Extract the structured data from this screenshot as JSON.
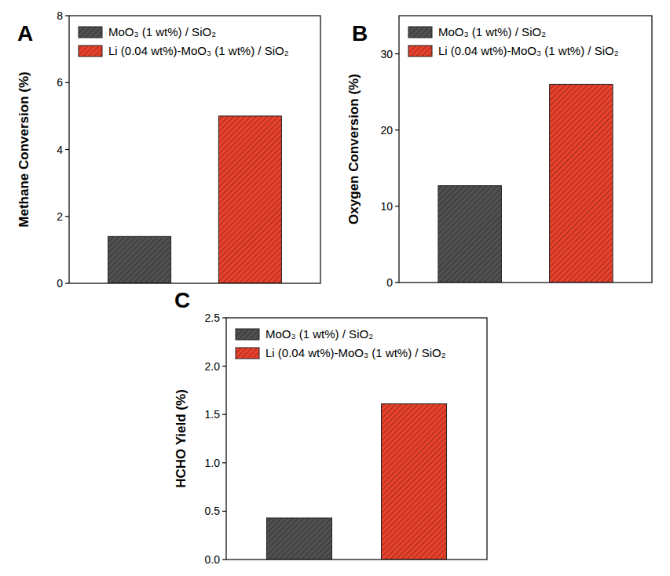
{
  "chart_data": [
    {
      "type": "bar",
      "title": "A",
      "y_label": "Methane Conversion (%)",
      "categories": [
        null
      ],
      "series": [
        {
          "name": "MoO₃ (1 wt%) / SiO₂",
          "color": "#505050",
          "values": [
            1.4
          ]
        },
        {
          "name": "Li (0.04 wt%)-MoO₃ (1 wt%) / SiO₂",
          "color": "#e8412c",
          "values": [
            5.0
          ]
        }
      ],
      "ylim": [
        0,
        8
      ],
      "yticks": [
        0,
        2,
        4,
        6,
        8
      ],
      "legend": "upper left",
      "tick_labels": "y"
    },
    {
      "type": "bar",
      "title": "B",
      "y_label": "Oxygen Conversion (%)",
      "categories": [
        null
      ],
      "series": [
        {
          "name": "MoO₃ (1 wt%) / SiO₂",
          "color": "#505050",
          "values": [
            12.7
          ]
        },
        {
          "name": "Li (0.04 wt%)-MoO₃ (1 wt%) / SiO₂",
          "color": "#e8412c",
          "values": [
            26.0
          ]
        }
      ],
      "ylim": [
        0,
        35
      ],
      "yticks": [
        0,
        10,
        20,
        30
      ],
      "legend": "upper left",
      "tick_labels": "y"
    },
    {
      "type": "bar",
      "title": "C",
      "y_label": "HCHO Yield (%)",
      "categories": [
        null
      ],
      "series": [
        {
          "name": "MoO₃ (1 wt%) / SiO₂",
          "color": "#505050",
          "values": [
            0.43
          ]
        },
        {
          "name": "Li (0.04 wt%)-MoO₃ (1 wt%) / SiO₂",
          "color": "#e8412c",
          "values": [
            1.61
          ]
        }
      ],
      "ylim": [
        0,
        2.5
      ],
      "yticks": [
        {
          "value": 0,
          "label": "0.0"
        },
        0.5,
        {
          "value": 1,
          "label": "1.0"
        },
        1.5,
        {
          "value": 2,
          "label": "2.0"
        },
        2.5
      ],
      "legend": "upper left",
      "tick_labels": "y"
    }
  ]
}
